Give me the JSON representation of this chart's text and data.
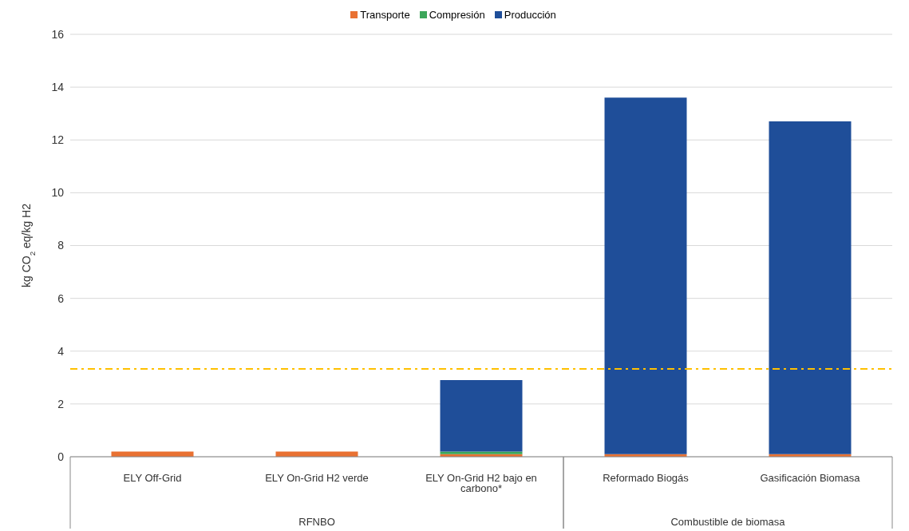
{
  "chart_data": {
    "type": "bar",
    "stacked": true,
    "ylabel": "kg CO$_{2}$ eq/kg H2",
    "categories": [
      "ELY Off-Grid",
      "ELY On-Grid H2 verde",
      "ELY On-Grid H2 bajo en carbono*",
      "Reformado Biogás",
      "Gasificación Biomasa"
    ],
    "series": [
      {
        "name": "Transporte",
        "color": "#e97132",
        "values": [
          0.2,
          0.2,
          0.1,
          0.1,
          0.1
        ]
      },
      {
        "name": "Compresión",
        "color": "#3ca65a",
        "values": [
          0,
          0,
          0.1,
          0,
          0
        ]
      },
      {
        "name": "Producción",
        "color": "#1f4e99",
        "values": [
          0,
          0,
          2.7,
          13.5,
          12.6
        ]
      }
    ],
    "ylim": [
      0,
      16
    ],
    "yticks": [
      0,
      2,
      4,
      6,
      8,
      10,
      12,
      14,
      16
    ],
    "grid": "y",
    "legend": "top",
    "ref_lines": [
      {
        "axis": "y",
        "value": 3.33,
        "color": "#ffc000",
        "line_style": "dashdot"
      }
    ],
    "annotations": [
      "RFNBO",
      "Combustible de biomasa"
    ]
  }
}
